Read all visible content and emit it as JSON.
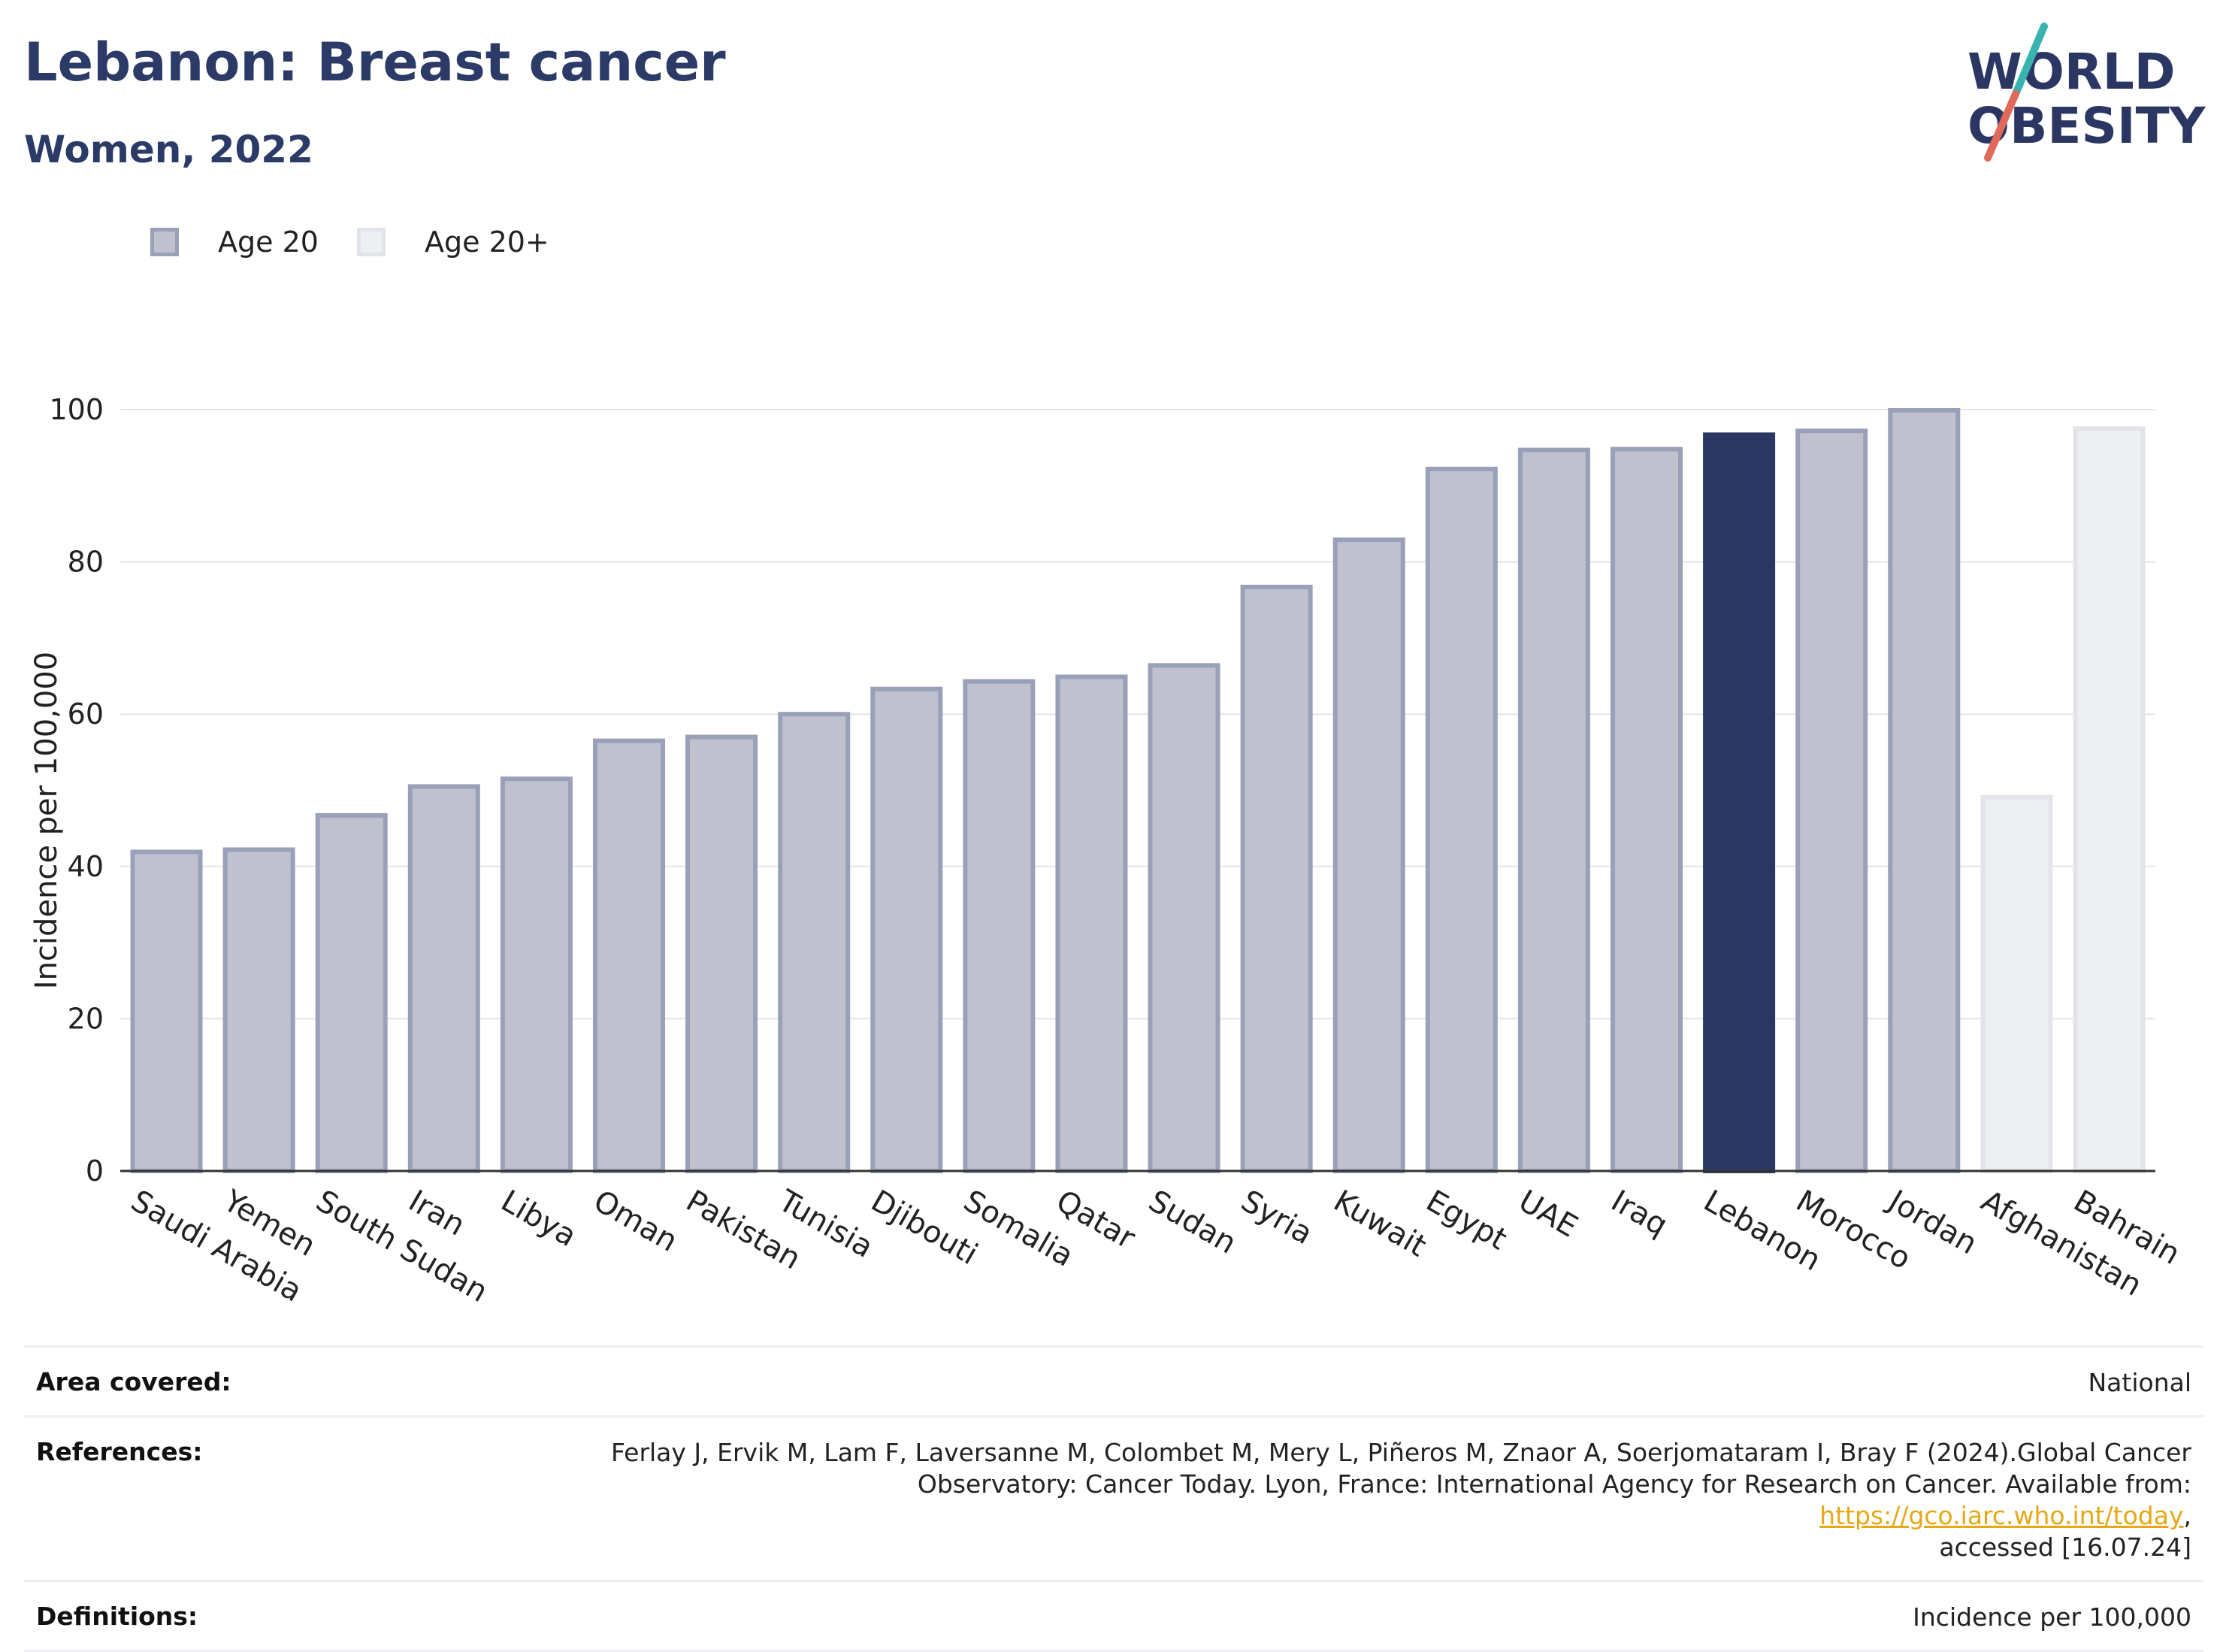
{
  "header": {
    "title": "Lebanon: Breast cancer",
    "subtitle": "Women, 2022"
  },
  "logo": {
    "line1": "WORLD",
    "line2": "OBESITY"
  },
  "legend": {
    "items": [
      {
        "label": "Age 20",
        "color": "#bfc2ce",
        "border": "#9aa0b8"
      },
      {
        "label": "Age 20+",
        "color": "#eeeff2",
        "border": "#e2e4ea"
      }
    ]
  },
  "chart_data": {
    "type": "bar",
    "title": "Lebanon: Breast cancer",
    "subtitle": "Women, 2022",
    "ylabel": "Incidence per 100,000",
    "xlabel": "",
    "ylim": [
      0,
      100
    ],
    "yticks": [
      0,
      20,
      40,
      60,
      80,
      100
    ],
    "grid": true,
    "legend_position": "top-left",
    "highlight": "Lebanon",
    "categories": [
      "Saudi Arabia",
      "Yemen",
      "South Sudan",
      "Iran",
      "Libya",
      "Oman",
      "Pakistan",
      "Tunisia",
      "Djibouti",
      "Somalia",
      "Qatar",
      "Sudan",
      "Syria",
      "Kuwait",
      "Egypt",
      "UAE",
      "Iraq",
      "Lebanon",
      "Morocco",
      "Jordan",
      "Afghanistan",
      "Bahrain"
    ],
    "values": [
      42.2,
      42.5,
      47.0,
      50.8,
      51.8,
      56.8,
      57.3,
      60.3,
      63.6,
      64.6,
      65.2,
      66.7,
      77.0,
      83.2,
      92.5,
      95.0,
      95.1,
      97.0,
      97.5,
      100.2,
      49.4,
      97.8
    ],
    "groups": [
      "Age 20",
      "Age 20",
      "Age 20",
      "Age 20",
      "Age 20",
      "Age 20",
      "Age 20",
      "Age 20",
      "Age 20",
      "Age 20",
      "Age 20",
      "Age 20",
      "Age 20",
      "Age 20",
      "Age 20",
      "Age 20",
      "Age 20",
      "Age 20",
      "Age 20",
      "Age 20",
      "Age 20+",
      "Age 20+"
    ],
    "colors": {
      "age20_fill": "#bfc2ce",
      "age20_stroke": "#9aa0b8",
      "age20plus_fill": "#eeeff2",
      "age20plus_stroke": "#e2e4ea",
      "highlight": "#2b3762"
    }
  },
  "meta": {
    "area_key": "Area covered:",
    "area_val": "National",
    "ref_key": "References:",
    "ref_text1": "Ferlay J, Ervik M, Lam F, Laversanne M, Colombet M, Mery L, Piñeros M, Znaor A, Soerjomataram I, Bray F (2024).Global Cancer",
    "ref_text2": "Observatory: Cancer Today. Lyon, France: International Agency for Research on Cancer. Available from: ",
    "ref_link": "https://gco.iarc.who.int/today",
    "ref_text3": ",",
    "ref_text4": "accessed [16.07.24]",
    "def_key": "Definitions:",
    "def_val": "Incidence per 100,000"
  }
}
